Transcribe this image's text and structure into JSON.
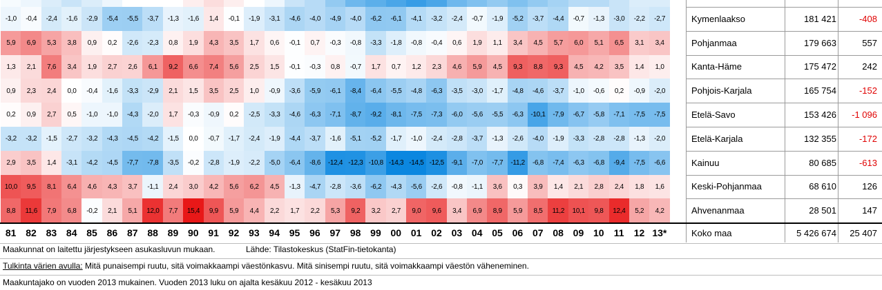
{
  "chart_data": {
    "type": "heatmap",
    "title": "",
    "xlabel": "",
    "ylabel": "",
    "years": [
      "81",
      "82",
      "83",
      "84",
      "85",
      "86",
      "87",
      "88",
      "89",
      "90",
      "91",
      "92",
      "93",
      "94",
      "95",
      "96",
      "97",
      "98",
      "99",
      "00",
      "01",
      "02",
      "03",
      "04",
      "05",
      "06",
      "07",
      "08",
      "09",
      "10",
      "11",
      "12",
      "13*"
    ],
    "color_scale": {
      "negative": "#0b87e0",
      "neutral": "#ffffff",
      "positive": "#e81818"
    },
    "rows": [
      {
        "region": "Kymenlaakso",
        "population": "181 421",
        "change": "-408",
        "values": [
          -1.0,
          -0.4,
          -2.4,
          -1.6,
          -2.9,
          -5.4,
          -5.5,
          -3.7,
          -1.3,
          -1.6,
          1.4,
          -0.1,
          -1.9,
          -3.1,
          -4.6,
          -4.0,
          -4.9,
          -4.0,
          -6.2,
          -6.1,
          -4.1,
          -3.2,
          -2.4,
          -0.7,
          -1.9,
          -5.2,
          -3.7,
          -4.4,
          -0.7,
          -1.3,
          -3.0,
          -2.2,
          -2.7
        ]
      },
      {
        "region": "Pohjanmaa",
        "population": "179 663",
        "change": "557",
        "values": [
          5.9,
          6.9,
          5.3,
          3.8,
          0.9,
          0.2,
          -2.6,
          -2.3,
          0.8,
          1.9,
          4.3,
          3.5,
          1.7,
          0.6,
          -0.1,
          0.7,
          -0.3,
          -0.8,
          -3.3,
          -1.8,
          -0.8,
          -0.4,
          0.6,
          1.9,
          1.1,
          3.4,
          4.5,
          5.7,
          6.0,
          5.1,
          6.5,
          3.1,
          3.4
        ]
      },
      {
        "region": "Kanta-Häme",
        "population": "175 472",
        "change": "242",
        "values": [
          1.3,
          2.1,
          7.6,
          3.4,
          1.9,
          2.7,
          2.6,
          6.1,
          9.2,
          6.6,
          7.4,
          5.6,
          2.5,
          1.5,
          -0.1,
          -0.3,
          0.8,
          -0.7,
          1.7,
          0.7,
          1.2,
          2.3,
          4.6,
          5.9,
          4.5,
          9.3,
          8.8,
          9.3,
          4.5,
          4.2,
          3.5,
          1.4,
          1.0
        ]
      },
      {
        "region": "Pohjois-Karjala",
        "population": "165 754",
        "change": "-152",
        "values": [
          0.9,
          2.3,
          2.4,
          0.0,
          -0.4,
          -1.6,
          -3.3,
          -2.9,
          2.1,
          1.5,
          3.5,
          2.5,
          1.0,
          -0.9,
          -3.6,
          -5.9,
          -6.1,
          -8.4,
          -6.4,
          -5.5,
          -4.8,
          -6.3,
          -3.5,
          -3.0,
          -1.7,
          -4.8,
          -4.6,
          -3.7,
          -1.0,
          -0.6,
          0.2,
          -0.9,
          -2.0
        ]
      },
      {
        "region": "Etelä-Savo",
        "population": "153 426",
        "change": "-1 096",
        "values": [
          0.2,
          0.9,
          2.7,
          0.5,
          -1.0,
          -1.0,
          -4.3,
          -2.0,
          1.7,
          -0.3,
          -0.9,
          0.2,
          -2.5,
          -3.3,
          -4.6,
          -6.3,
          -7.1,
          -8.7,
          -9.2,
          -8.1,
          -7.5,
          -7.3,
          -6.0,
          -5.6,
          -5.5,
          -6.3,
          -10.1,
          -7.9,
          -6.7,
          -5.8,
          -7.1,
          -7.5,
          -7.5
        ]
      },
      {
        "region": "Etelä-Karjala",
        "population": "132 355",
        "change": "-172",
        "values": [
          -3.2,
          -3.2,
          -1.5,
          -2.7,
          -3.2,
          -4.3,
          -4.5,
          -4.2,
          -1.5,
          0.0,
          -0.7,
          -1.7,
          -2.4,
          -1.9,
          -4.4,
          -3.7,
          -1.6,
          -5.1,
          -5.2,
          -1.7,
          -1.0,
          -2.4,
          -2.8,
          -3.7,
          -1.3,
          -2.6,
          -4.0,
          -1.9,
          -3.3,
          -2.8,
          -2.8,
          -1.3,
          -2.0
        ]
      },
      {
        "region": "Kainuu",
        "population": "80 685",
        "change": "-613",
        "values": [
          2.9,
          3.5,
          1.4,
          -3.1,
          -4.2,
          -4.5,
          -7.7,
          -7.8,
          -3.5,
          -0.2,
          -2.8,
          -1.9,
          -2.2,
          -5.0,
          -6.4,
          -8.6,
          -12.4,
          -12.3,
          -10.8,
          -14.3,
          -14.5,
          -12.5,
          -9.1,
          -7.0,
          -7.7,
          -11.2,
          -6.8,
          -7.4,
          -6.3,
          -6.8,
          -9.4,
          -7.5,
          -6.6
        ]
      },
      {
        "region": "Keski-Pohjanmaa",
        "population": "68 610",
        "change": "126",
        "values": [
          10.0,
          9.5,
          8.1,
          6.4,
          4.6,
          4.3,
          3.7,
          -1.1,
          2.4,
          3.0,
          4.2,
          5.6,
          6.2,
          4.5,
          -1.3,
          -4.7,
          -2.8,
          -3.6,
          -6.2,
          -4.3,
          -5.6,
          -2.6,
          -0.8,
          -1.1,
          3.6,
          0.3,
          3.9,
          1.4,
          2.1,
          2.8,
          2.4,
          1.8,
          1.6
        ]
      },
      {
        "region": "Ahvenanmaa",
        "population": "28 501",
        "change": "147",
        "values": [
          8.8,
          11.6,
          7.9,
          6.8,
          -0.2,
          2.1,
          5.1,
          12.0,
          7.7,
          15.4,
          9.9,
          5.9,
          4.4,
          2.2,
          1.7,
          2.2,
          5.3,
          9.2,
          3.2,
          2.7,
          9.0,
          9.6,
          3.4,
          6.9,
          8.9,
          5.9,
          8.5,
          11.2,
          10.1,
          9.8,
          12.4,
          5.2,
          4.2
        ]
      }
    ],
    "total": {
      "region": "Koko maa",
      "population": "5 426 674",
      "change": "25 407"
    }
  },
  "notes": {
    "line1_left": "Maakunnat on laitettu järjestykseen asukasluvun mukaan.",
    "line1_right": "Lähde: Tilastokeskus (StatFin-tietokanta)",
    "line2_label": "Tulkinta värien avulla:",
    "line2_text": " Mitä punaisempi ruutu, sitä voimakkaampi väestönkasvu. Mitä sinisempi ruutu, sitä voimakkaampi väestön väheneminen.",
    "line3": "Maakuntajako on vuoden 2013 mukainen. Vuoden 2013 luku on ajalta kesäkuu 2012 - kesäkuu 2013"
  }
}
